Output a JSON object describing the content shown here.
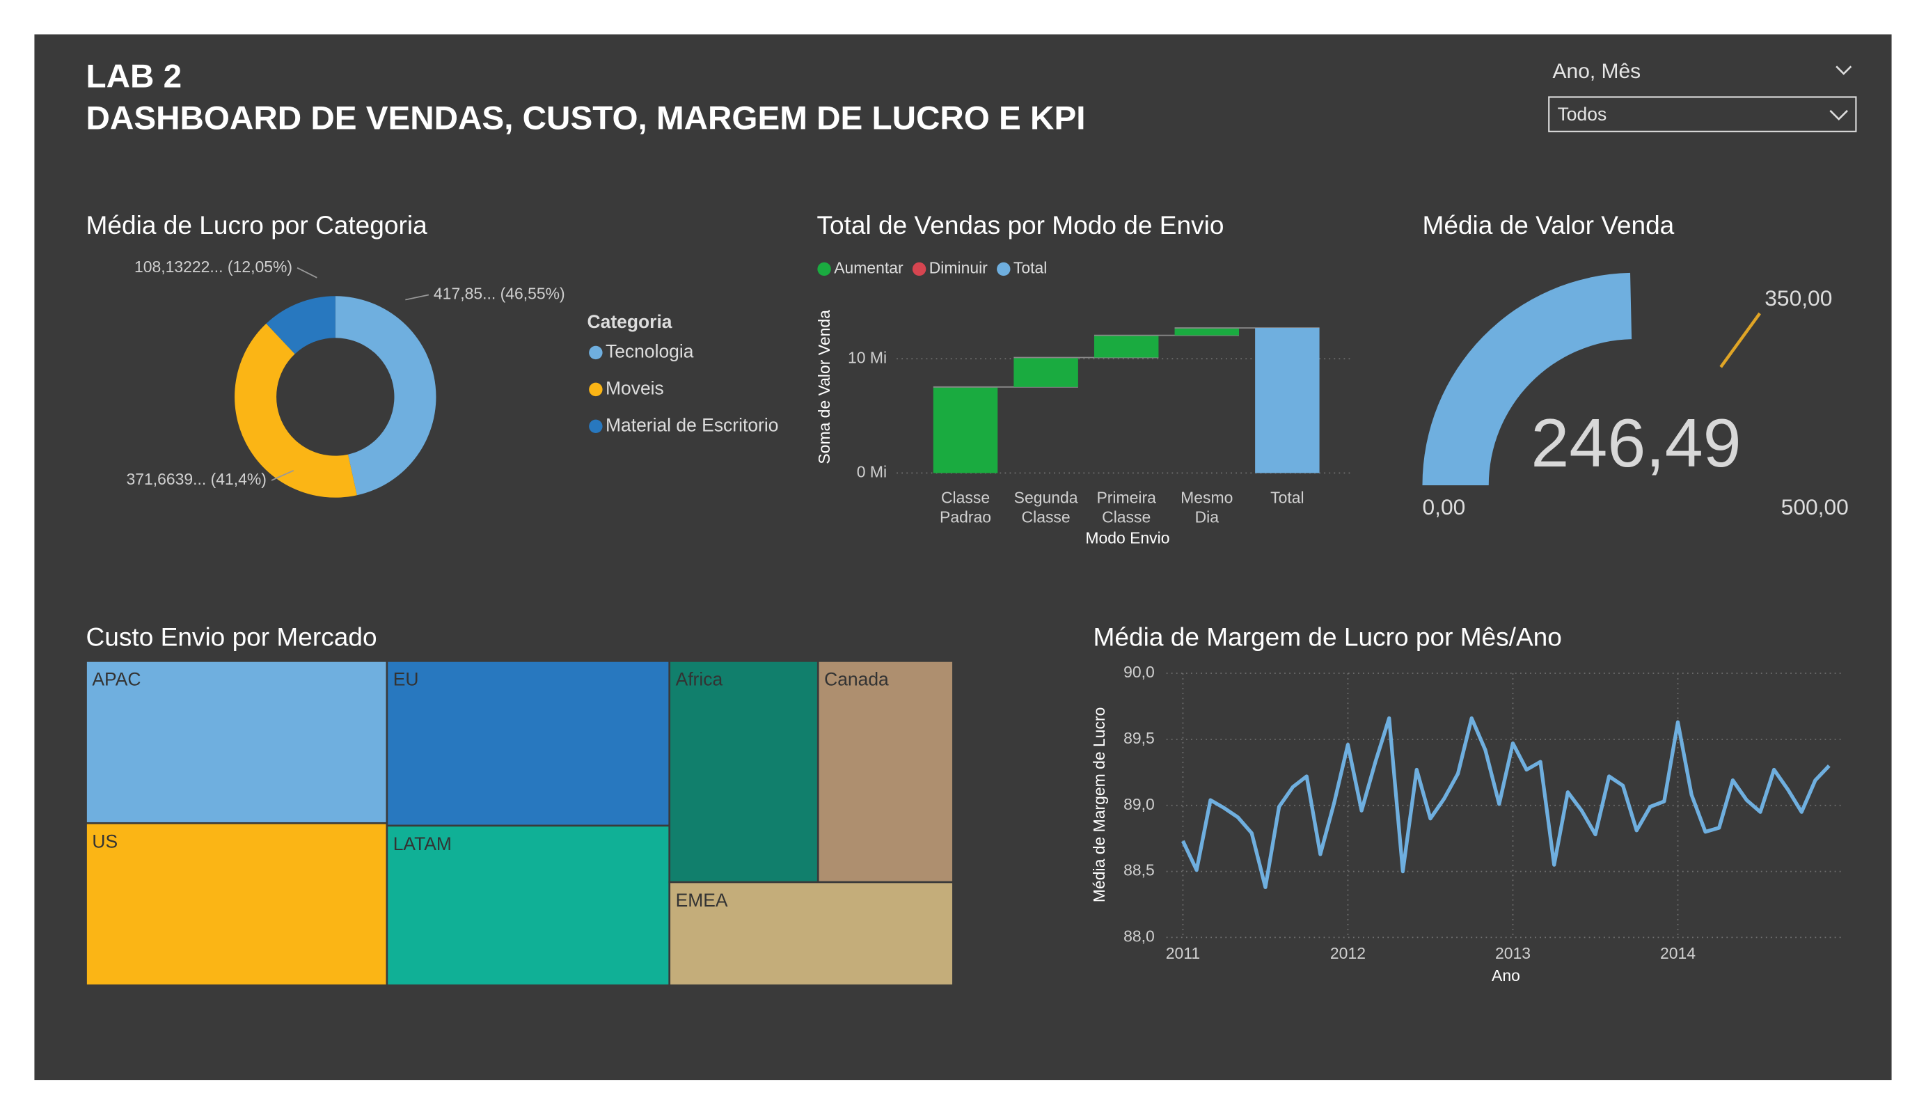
{
  "header": {
    "title": "LAB 2",
    "subtitle": "DASHBOARD DE VENDAS, CUSTO, MARGEM DE LUCRO E KPI"
  },
  "slicer": {
    "label": "Ano, Mês",
    "value": "Todos"
  },
  "chart_data": [
    {
      "type": "donut",
      "title": "Média de Lucro por Categoria",
      "categories": [
        "Tecnologia",
        "Moveis",
        "Material de Escritorio"
      ],
      "values": [
        417.85,
        371.6639,
        108.13222
      ],
      "value_labels": [
        "417,85... (46,55%)",
        "371,6639... (41,4%)",
        "108,13222... (12,05%)"
      ],
      "colors": [
        "#6fafdf",
        "#fbb515",
        "#2878bf"
      ],
      "legend_title": "Categoria"
    },
    {
      "type": "waterfall",
      "title": "Total de Vendas por Modo de Envio",
      "categories": [
        "Classe Padrao",
        "Segunda Classe",
        "Primeira Classe",
        "Mesmo Dia",
        "Total"
      ],
      "values": [
        7.53,
        2.58,
        1.94,
        0.65,
        12.7
      ],
      "legend": [
        {
          "name": "Aumentar",
          "color": "#1aab40"
        },
        {
          "name": "Diminuir",
          "color": "#d64550"
        },
        {
          "name": "Total",
          "color": "#6fafdf"
        }
      ],
      "xlabel": "Modo Envio",
      "ylabel": "Soma de Valor Venda",
      "ylim": [
        0,
        14
      ],
      "yticks": [
        {
          "value": 0,
          "label": "0 Mi"
        },
        {
          "value": 10,
          "label": "10 Mi"
        }
      ],
      "grid": true
    },
    {
      "type": "gauge",
      "title": "Média de Valor Venda",
      "value": 246.49,
      "value_label": "246,49",
      "min": {
        "value": 0,
        "label": "0,00"
      },
      "max": {
        "value": 500,
        "label": "500,00"
      },
      "target": {
        "value": 350,
        "label": "350,00"
      },
      "color": "#6fafdf",
      "target_color": "#e0a526"
    },
    {
      "type": "treemap",
      "title": "Custo Envio por Mercado",
      "categories": [
        "APAC",
        "US",
        "EU",
        "LATAM",
        "Africa",
        "Canada",
        "EMEA"
      ],
      "values": [
        32340,
        32340,
        30820,
        29900,
        21780,
        19800,
        19404
      ],
      "colors": [
        "#6fafdf",
        "#fbb515",
        "#2878bf",
        "#10b096",
        "#117f6c",
        "#ae8f6f",
        "#c4ad7a"
      ]
    },
    {
      "type": "line",
      "title": "Média de Margem de Lucro por Mês/Ano",
      "x": [
        2011,
        2011.083,
        2011.167,
        2011.25,
        2011.333,
        2011.417,
        2011.5,
        2011.583,
        2011.667,
        2011.75,
        2011.833,
        2011.917,
        2012,
        2012.083,
        2012.167,
        2012.25,
        2012.333,
        2012.417,
        2012.5,
        2012.583,
        2012.667,
        2012.75,
        2012.833,
        2012.917,
        2013,
        2013.083,
        2013.167,
        2013.25,
        2013.333,
        2013.417,
        2013.5,
        2013.583,
        2013.667,
        2013.75,
        2013.833,
        2013.917,
        2014,
        2014.083,
        2014.167,
        2014.25,
        2014.333,
        2014.417,
        2014.5,
        2014.583,
        2014.667,
        2014.75,
        2014.833,
        2014.917
      ],
      "values": [
        88.73,
        88.51,
        89.04,
        88.98,
        88.91,
        88.79,
        88.38,
        88.99,
        89.14,
        89.22,
        88.63,
        89.02,
        89.46,
        88.96,
        89.33,
        89.66,
        88.5,
        89.27,
        88.9,
        89.05,
        89.24,
        89.66,
        89.42,
        89.01,
        89.47,
        89.27,
        89.33,
        88.55,
        89.1,
        88.96,
        88.78,
        89.22,
        89.15,
        88.81,
        88.99,
        89.03,
        89.63,
        89.08,
        88.8,
        88.83,
        89.19,
        89.04,
        88.95,
        89.27,
        89.12,
        88.95,
        89.19,
        89.3
      ],
      "color": "#6fafdf",
      "xlabel": "Ano",
      "ylabel": "Média de Margem de Lucro",
      "xlim": [
        2010.9,
        2015
      ],
      "xticks": [
        2011,
        2012,
        2013,
        2014
      ],
      "ylim": [
        88,
        90
      ],
      "yticks": [
        {
          "value": 88,
          "label": "88,0"
        },
        {
          "value": 88.5,
          "label": "88,5"
        },
        {
          "value": 89,
          "label": "89,0"
        },
        {
          "value": 89.5,
          "label": "89,5"
        },
        {
          "value": 90,
          "label": "90,0"
        }
      ],
      "grid": true
    }
  ]
}
